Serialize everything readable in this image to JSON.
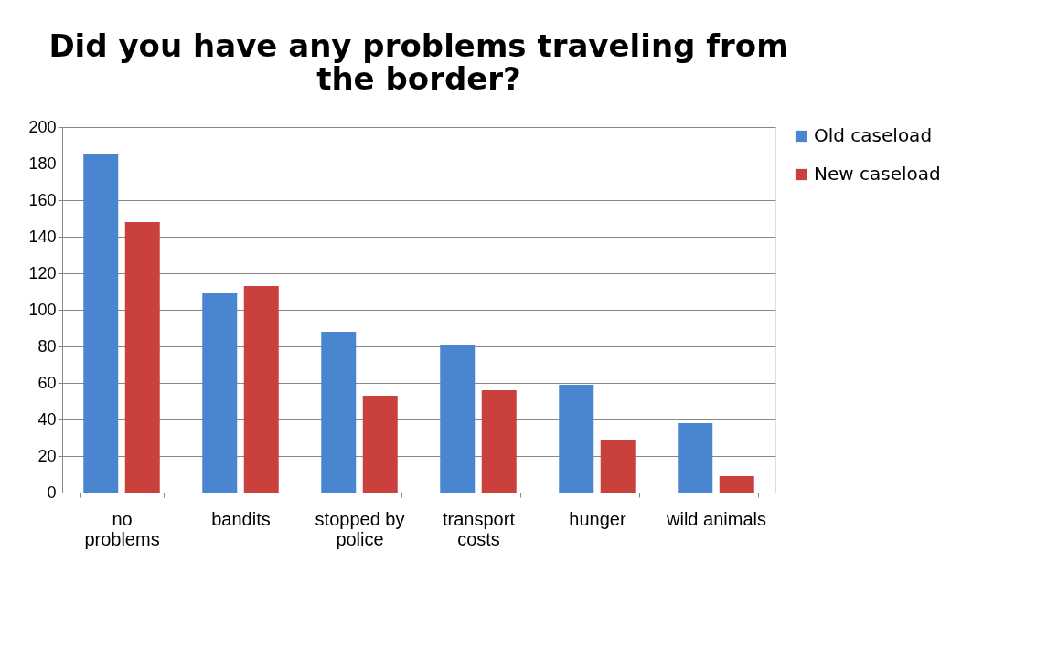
{
  "chart_data": {
    "type": "bar",
    "title": "Did you have any problems traveling from the border?",
    "categories": [
      "no\nproblems",
      "bandits",
      "stopped by\npolice",
      "transport\ncosts",
      "hunger",
      "wild animals"
    ],
    "series": [
      {
        "name": "Old caseload",
        "color": "#4a86d0",
        "values": [
          185,
          109,
          88,
          81,
          59,
          38
        ]
      },
      {
        "name": "New caseload",
        "color": "#c9403d",
        "values": [
          148,
          113,
          53,
          56,
          29,
          9
        ]
      }
    ],
    "ylim": [
      0,
      200
    ],
    "yticks": [
      0,
      20,
      40,
      60,
      80,
      100,
      120,
      140,
      160,
      180,
      200
    ],
    "grid": "y",
    "legend": "right"
  }
}
